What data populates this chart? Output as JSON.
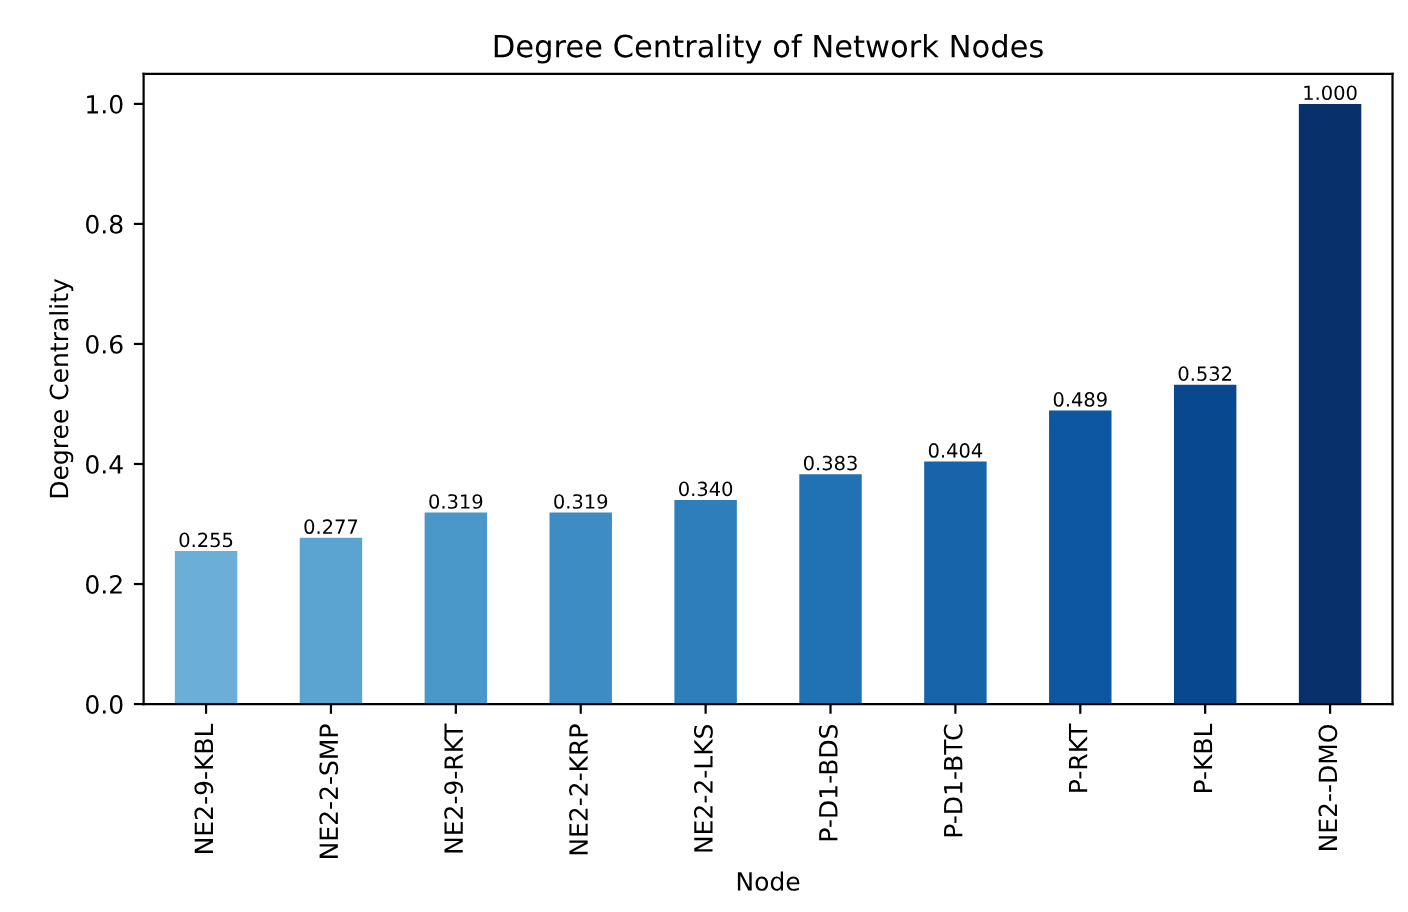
{
  "chart_data": {
    "type": "bar",
    "title": "Degree Centrality of Network Nodes",
    "xlabel": "Node",
    "ylabel": "Degree Centrality",
    "categories": [
      "NE2-9-KBL",
      "NE2-2-SMP",
      "NE2-9-RKT",
      "NE2-2-KRP",
      "NE2-2-LKS",
      "P-D1-BDS",
      "P-D1-BTC",
      "P-RKT",
      "P-KBL",
      "NE2--DMO"
    ],
    "values": [
      0.255,
      0.277,
      0.319,
      0.319,
      0.34,
      0.383,
      0.404,
      0.489,
      0.532,
      1.0
    ],
    "value_labels": [
      "0.255",
      "0.277",
      "0.319",
      "0.319",
      "0.340",
      "0.383",
      "0.404",
      "0.489",
      "0.532",
      "1.000"
    ],
    "colors": [
      "#6baed6",
      "#5ba3d0",
      "#4a98c9",
      "#3d8dc4",
      "#2f7ebc",
      "#2171b5",
      "#1764ab",
      "#0d57a1",
      "#08488e",
      "#08306b"
    ],
    "ylim": [
      0,
      1.05
    ],
    "yticks": [
      {
        "value": 0,
        "label": "0.0"
      },
      {
        "value": 0.2,
        "label": "0.2"
      },
      {
        "value": 0.4,
        "label": "0.4"
      },
      {
        "value": 0.6,
        "label": "0.6"
      },
      {
        "value": 0.8,
        "label": "0.8"
      },
      {
        "value": 1.0,
        "label": "1.0"
      }
    ],
    "grid": false
  }
}
